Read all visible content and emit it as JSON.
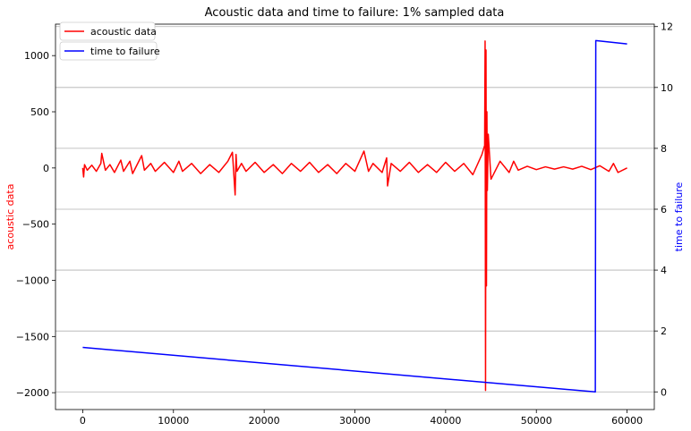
{
  "chart_data": {
    "type": "line",
    "title": "Acoustic data and time to failure: 1% sampled data",
    "xlim": [
      -3000,
      63000
    ],
    "x_ticks": [
      0,
      10000,
      20000,
      30000,
      40000,
      50000,
      60000
    ],
    "x_tick_labels": [
      "0",
      "10000",
      "20000",
      "30000",
      "40000",
      "50000",
      "60000"
    ],
    "left_axis": {
      "label": "acoustic data",
      "color": "#ff0000",
      "ylim": [
        -2150,
        1280
      ],
      "ticks": [
        1000,
        500,
        0,
        -500,
        -1000,
        -1500,
        -2000
      ],
      "tick_labels": [
        "1000",
        "500",
        "0",
        "−500",
        "−1000",
        "−1500",
        "−2000"
      ]
    },
    "right_axis": {
      "label": "time to failure",
      "color": "#0000ff",
      "ylim": [
        -0.58,
        12.08
      ],
      "ticks": [
        0,
        2,
        4,
        6,
        8,
        10,
        12
      ],
      "tick_labels": [
        "0",
        "2",
        "4",
        "6",
        "8",
        "10",
        "12"
      ]
    },
    "grid": "horizontal, right axis",
    "legend": [
      {
        "name": "acoustic data",
        "color": "#ff0000"
      },
      {
        "name": "time to failure",
        "color": "#0000ff"
      }
    ],
    "legend_placement": "top-left",
    "series": [
      {
        "name": "acoustic data",
        "axis": "left",
        "color": "#ff0000",
        "x": [
          0,
          100,
          200,
          500,
          1000,
          1500,
          2000,
          2100,
          2500,
          3000,
          3500,
          4200,
          4500,
          5200,
          5500,
          6500,
          6800,
          7500,
          8000,
          9000,
          10000,
          10600,
          11000,
          12000,
          13000,
          14000,
          15000,
          16000,
          16500,
          16800,
          16900,
          17000,
          17500,
          18000,
          19000,
          20000,
          21000,
          22000,
          23000,
          24000,
          25000,
          26000,
          27000,
          28000,
          29000,
          30000,
          31000,
          31500,
          32000,
          33000,
          33500,
          33600,
          34000,
          35000,
          36000,
          37000,
          38000,
          39000,
          40000,
          41000,
          42000,
          43000,
          44000,
          44300,
          44350,
          44400,
          44450,
          44500,
          44550,
          44600,
          44700,
          45000,
          46000,
          47000,
          47500,
          48000,
          49000,
          50000,
          51000,
          52000,
          53000,
          54000,
          55000,
          56000,
          57000,
          58000,
          58500,
          59000,
          60000
        ],
        "y": [
          0,
          -80,
          30,
          -20,
          25,
          -30,
          40,
          130,
          -20,
          30,
          -40,
          70,
          -30,
          60,
          -50,
          110,
          -20,
          40,
          -30,
          50,
          -40,
          60,
          -30,
          40,
          -50,
          30,
          -40,
          60,
          140,
          -240,
          120,
          -30,
          40,
          -30,
          50,
          -40,
          30,
          -50,
          40,
          -30,
          50,
          -40,
          30,
          -50,
          40,
          -30,
          150,
          -30,
          40,
          -40,
          90,
          -160,
          40,
          -30,
          50,
          -40,
          30,
          -40,
          50,
          -30,
          40,
          -60,
          120,
          200,
          1130,
          -1980,
          1050,
          -1050,
          500,
          -200,
          300,
          -100,
          60,
          -40,
          60,
          -20,
          15,
          -15,
          10,
          -10,
          10,
          -10,
          15,
          -15,
          20,
          -30,
          40,
          -40,
          0
        ]
      },
      {
        "name": "time to failure",
        "axis": "right",
        "color": "#0000ff",
        "x": [
          0,
          56500,
          56550,
          60000
        ],
        "y": [
          1.46,
          0.0,
          11.54,
          11.43
        ]
      }
    ]
  }
}
